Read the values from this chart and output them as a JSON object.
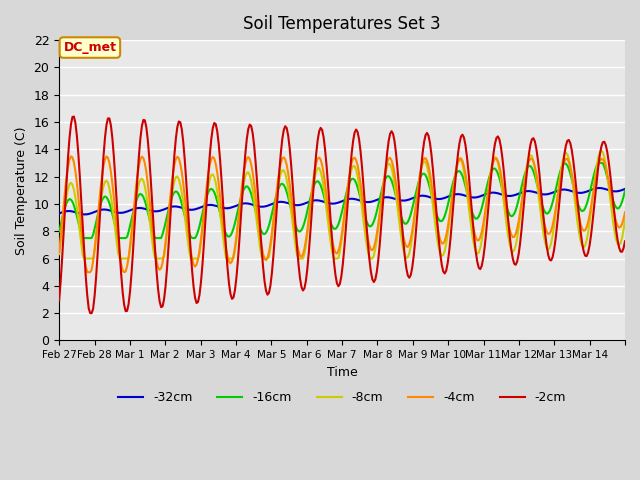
{
  "title": "Soil Temperatures Set 3",
  "xlabel": "Time",
  "ylabel": "Soil Temperature (C)",
  "ylim": [
    0,
    22
  ],
  "yticks": [
    0,
    2,
    4,
    6,
    8,
    10,
    12,
    14,
    16,
    18,
    20,
    22
  ],
  "xtick_positions": [
    0,
    1,
    2,
    3,
    4,
    5,
    6,
    7,
    8,
    9,
    10,
    11,
    12,
    13,
    14,
    15,
    16
  ],
  "xtick_labels": [
    "Feb 27",
    "Feb 28",
    "Mar 1",
    "Mar 2",
    "Mar 3",
    "Mar 4",
    "Mar 5",
    "Mar 6",
    "Mar 7",
    "Mar 8",
    "Mar 9",
    "Mar 10",
    "Mar 11",
    "Mar 12",
    "Mar 13",
    "Mar 14",
    ""
  ],
  "legend_labels": [
    "-32cm",
    "-16cm",
    "-8cm",
    "-4cm",
    "-2cm"
  ],
  "line_colors": [
    "#0000cc",
    "#00cc00",
    "#cccc00",
    "#ff8800",
    "#cc0000"
  ],
  "line_widths": [
    1.5,
    1.5,
    1.5,
    1.5,
    1.5
  ],
  "annotation_text": "DC_met",
  "annotation_color": "#cc0000",
  "fig_bg_color": "#d8d8d8",
  "plot_bg_color": "#e8e8e8",
  "grid_color": "#ffffff",
  "n_days": 16
}
